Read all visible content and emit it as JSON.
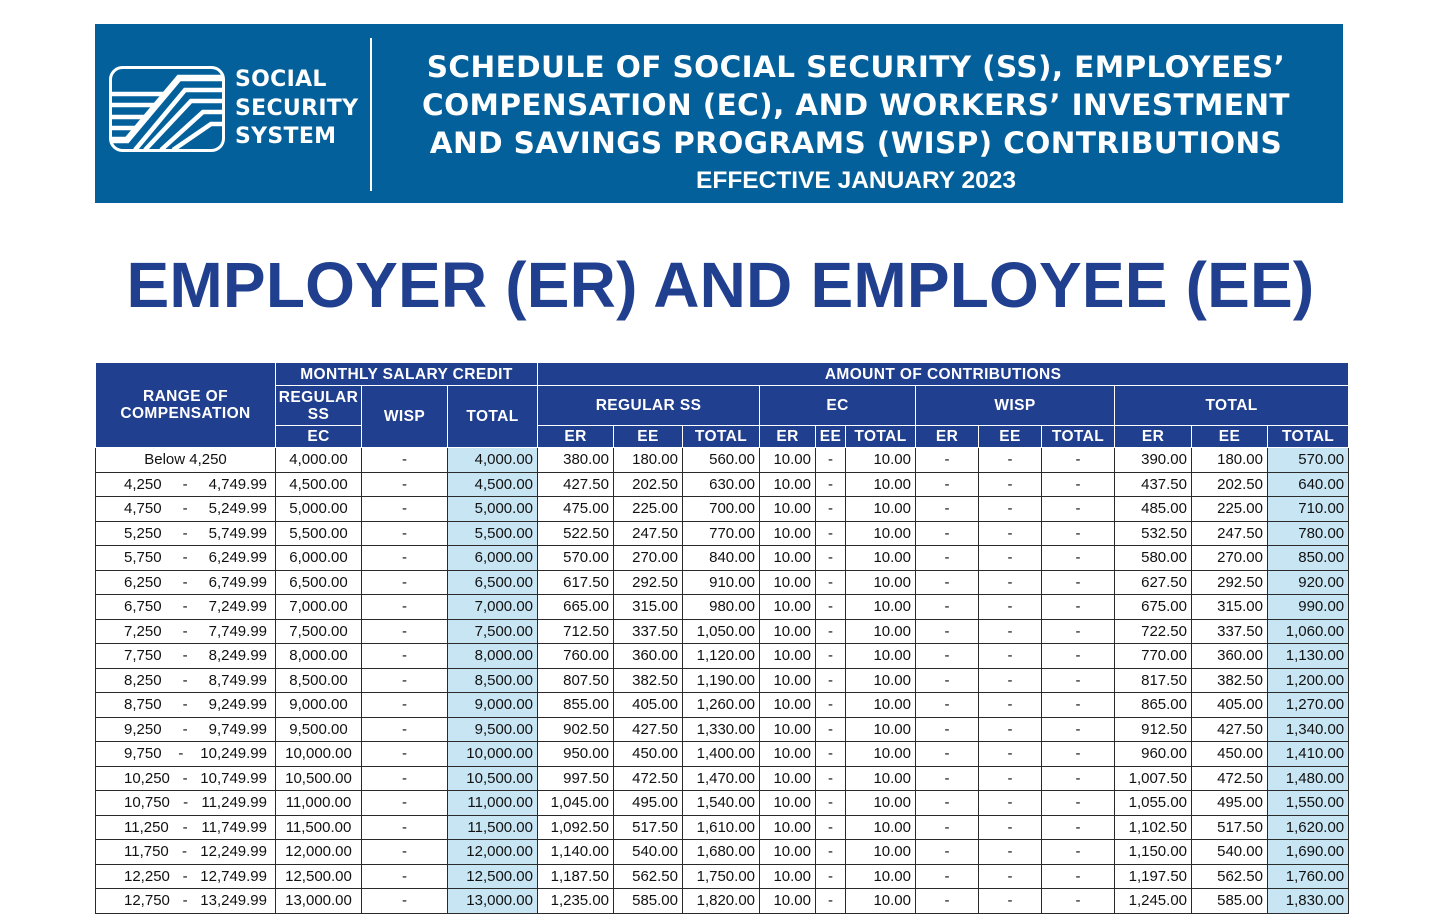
{
  "banner": {
    "logo_lines": [
      "SOCIAL",
      "SECURITY",
      "SYSTEM"
    ],
    "title_lines": [
      "SCHEDULE OF SOCIAL SECURITY (SS), EMPLOYEES’",
      "COMPENSATION (EC), AND WORKERS’ INVESTMENT",
      "AND SAVINGS PROGRAMS (WISP) CONTRIBUTIONS"
    ],
    "effective": "EFFECTIVE JANUARY 2023"
  },
  "main_title": "EMPLOYER (ER) AND EMPLOYEE (EE)",
  "table": {
    "head": {
      "range": "RANGE OF COMPENSATION",
      "msc": "MONTHLY SALARY CREDIT",
      "amount": "AMOUNT OF CONTRIBUTIONS",
      "regular_ss": "REGULAR SS",
      "ec": "EC",
      "wisp": "WISP",
      "total": "TOTAL",
      "contrib_regular_ss": "REGULAR SS",
      "contrib_ec": "EC",
      "contrib_wisp": "WISP",
      "contrib_total": "TOTAL",
      "er": "ER",
      "ee": "EE",
      "sub_total": "TOTAL"
    },
    "rows": [
      {
        "range_from": "Below 4,250",
        "range_sep": "",
        "range_to": "",
        "msc_ss": "4,000.00",
        "msc_wisp": "-",
        "msc_total": "4,000.00",
        "ss_er": "380.00",
        "ss_ee": "180.00",
        "ss_total": "560.00",
        "ec_er": "10.00",
        "ec_ee": "-",
        "ec_total": "10.00",
        "wisp_er": "-",
        "wisp_ee": "-",
        "wisp_total": "-",
        "tot_er": "390.00",
        "tot_ee": "180.00",
        "tot_total": "570.00"
      },
      {
        "range_from": "4,250",
        "range_sep": "-",
        "range_to": "4,749.99",
        "msc_ss": "4,500.00",
        "msc_wisp": "-",
        "msc_total": "4,500.00",
        "ss_er": "427.50",
        "ss_ee": "202.50",
        "ss_total": "630.00",
        "ec_er": "10.00",
        "ec_ee": "-",
        "ec_total": "10.00",
        "wisp_er": "-",
        "wisp_ee": "-",
        "wisp_total": "-",
        "tot_er": "437.50",
        "tot_ee": "202.50",
        "tot_total": "640.00"
      },
      {
        "range_from": "4,750",
        "range_sep": "-",
        "range_to": "5,249.99",
        "msc_ss": "5,000.00",
        "msc_wisp": "-",
        "msc_total": "5,000.00",
        "ss_er": "475.00",
        "ss_ee": "225.00",
        "ss_total": "700.00",
        "ec_er": "10.00",
        "ec_ee": "-",
        "ec_total": "10.00",
        "wisp_er": "-",
        "wisp_ee": "-",
        "wisp_total": "-",
        "tot_er": "485.00",
        "tot_ee": "225.00",
        "tot_total": "710.00"
      },
      {
        "range_from": "5,250",
        "range_sep": "-",
        "range_to": "5,749.99",
        "msc_ss": "5,500.00",
        "msc_wisp": "-",
        "msc_total": "5,500.00",
        "ss_er": "522.50",
        "ss_ee": "247.50",
        "ss_total": "770.00",
        "ec_er": "10.00",
        "ec_ee": "-",
        "ec_total": "10.00",
        "wisp_er": "-",
        "wisp_ee": "-",
        "wisp_total": "-",
        "tot_er": "532.50",
        "tot_ee": "247.50",
        "tot_total": "780.00"
      },
      {
        "range_from": "5,750",
        "range_sep": "-",
        "range_to": "6,249.99",
        "msc_ss": "6,000.00",
        "msc_wisp": "-",
        "msc_total": "6,000.00",
        "ss_er": "570.00",
        "ss_ee": "270.00",
        "ss_total": "840.00",
        "ec_er": "10.00",
        "ec_ee": "-",
        "ec_total": "10.00",
        "wisp_er": "-",
        "wisp_ee": "-",
        "wisp_total": "-",
        "tot_er": "580.00",
        "tot_ee": "270.00",
        "tot_total": "850.00"
      },
      {
        "range_from": "6,250",
        "range_sep": "-",
        "range_to": "6,749.99",
        "msc_ss": "6,500.00",
        "msc_wisp": "-",
        "msc_total": "6,500.00",
        "ss_er": "617.50",
        "ss_ee": "292.50",
        "ss_total": "910.00",
        "ec_er": "10.00",
        "ec_ee": "-",
        "ec_total": "10.00",
        "wisp_er": "-",
        "wisp_ee": "-",
        "wisp_total": "-",
        "tot_er": "627.50",
        "tot_ee": "292.50",
        "tot_total": "920.00"
      },
      {
        "range_from": "6,750",
        "range_sep": "-",
        "range_to": "7,249.99",
        "msc_ss": "7,000.00",
        "msc_wisp": "-",
        "msc_total": "7,000.00",
        "ss_er": "665.00",
        "ss_ee": "315.00",
        "ss_total": "980.00",
        "ec_er": "10.00",
        "ec_ee": "-",
        "ec_total": "10.00",
        "wisp_er": "-",
        "wisp_ee": "-",
        "wisp_total": "-",
        "tot_er": "675.00",
        "tot_ee": "315.00",
        "tot_total": "990.00"
      },
      {
        "range_from": "7,250",
        "range_sep": "-",
        "range_to": "7,749.99",
        "msc_ss": "7,500.00",
        "msc_wisp": "-",
        "msc_total": "7,500.00",
        "ss_er": "712.50",
        "ss_ee": "337.50",
        "ss_total": "1,050.00",
        "ec_er": "10.00",
        "ec_ee": "-",
        "ec_total": "10.00",
        "wisp_er": "-",
        "wisp_ee": "-",
        "wisp_total": "-",
        "tot_er": "722.50",
        "tot_ee": "337.50",
        "tot_total": "1,060.00"
      },
      {
        "range_from": "7,750",
        "range_sep": "-",
        "range_to": "8,249.99",
        "msc_ss": "8,000.00",
        "msc_wisp": "-",
        "msc_total": "8,000.00",
        "ss_er": "760.00",
        "ss_ee": "360.00",
        "ss_total": "1,120.00",
        "ec_er": "10.00",
        "ec_ee": "-",
        "ec_total": "10.00",
        "wisp_er": "-",
        "wisp_ee": "-",
        "wisp_total": "-",
        "tot_er": "770.00",
        "tot_ee": "360.00",
        "tot_total": "1,130.00"
      },
      {
        "range_from": "8,250",
        "range_sep": "-",
        "range_to": "8,749.99",
        "msc_ss": "8,500.00",
        "msc_wisp": "-",
        "msc_total": "8,500.00",
        "ss_er": "807.50",
        "ss_ee": "382.50",
        "ss_total": "1,190.00",
        "ec_er": "10.00",
        "ec_ee": "-",
        "ec_total": "10.00",
        "wisp_er": "-",
        "wisp_ee": "-",
        "wisp_total": "-",
        "tot_er": "817.50",
        "tot_ee": "382.50",
        "tot_total": "1,200.00"
      },
      {
        "range_from": "8,750",
        "range_sep": "-",
        "range_to": "9,249.99",
        "msc_ss": "9,000.00",
        "msc_wisp": "-",
        "msc_total": "9,000.00",
        "ss_er": "855.00",
        "ss_ee": "405.00",
        "ss_total": "1,260.00",
        "ec_er": "10.00",
        "ec_ee": "-",
        "ec_total": "10.00",
        "wisp_er": "-",
        "wisp_ee": "-",
        "wisp_total": "-",
        "tot_er": "865.00",
        "tot_ee": "405.00",
        "tot_total": "1,270.00"
      },
      {
        "range_from": "9,250",
        "range_sep": "-",
        "range_to": "9,749.99",
        "msc_ss": "9,500.00",
        "msc_wisp": "-",
        "msc_total": "9,500.00",
        "ss_er": "902.50",
        "ss_ee": "427.50",
        "ss_total": "1,330.00",
        "ec_er": "10.00",
        "ec_ee": "-",
        "ec_total": "10.00",
        "wisp_er": "-",
        "wisp_ee": "-",
        "wisp_total": "-",
        "tot_er": "912.50",
        "tot_ee": "427.50",
        "tot_total": "1,340.00"
      },
      {
        "range_from": "9,750",
        "range_sep": "-",
        "range_to": "10,249.99",
        "msc_ss": "10,000.00",
        "msc_wisp": "-",
        "msc_total": "10,000.00",
        "ss_er": "950.00",
        "ss_ee": "450.00",
        "ss_total": "1,400.00",
        "ec_er": "10.00",
        "ec_ee": "-",
        "ec_total": "10.00",
        "wisp_er": "-",
        "wisp_ee": "-",
        "wisp_total": "-",
        "tot_er": "960.00",
        "tot_ee": "450.00",
        "tot_total": "1,410.00"
      },
      {
        "range_from": "10,250",
        "range_sep": "-",
        "range_to": "10,749.99",
        "msc_ss": "10,500.00",
        "msc_wisp": "-",
        "msc_total": "10,500.00",
        "ss_er": "997.50",
        "ss_ee": "472.50",
        "ss_total": "1,470.00",
        "ec_er": "10.00",
        "ec_ee": "-",
        "ec_total": "10.00",
        "wisp_er": "-",
        "wisp_ee": "-",
        "wisp_total": "-",
        "tot_er": "1,007.50",
        "tot_ee": "472.50",
        "tot_total": "1,480.00"
      },
      {
        "range_from": "10,750",
        "range_sep": "-",
        "range_to": "11,249.99",
        "msc_ss": "11,000.00",
        "msc_wisp": "-",
        "msc_total": "11,000.00",
        "ss_er": "1,045.00",
        "ss_ee": "495.00",
        "ss_total": "1,540.00",
        "ec_er": "10.00",
        "ec_ee": "-",
        "ec_total": "10.00",
        "wisp_er": "-",
        "wisp_ee": "-",
        "wisp_total": "-",
        "tot_er": "1,055.00",
        "tot_ee": "495.00",
        "tot_total": "1,550.00"
      },
      {
        "range_from": "11,250",
        "range_sep": "-",
        "range_to": "11,749.99",
        "msc_ss": "11,500.00",
        "msc_wisp": "-",
        "msc_total": "11,500.00",
        "ss_er": "1,092.50",
        "ss_ee": "517.50",
        "ss_total": "1,610.00",
        "ec_er": "10.00",
        "ec_ee": "-",
        "ec_total": "10.00",
        "wisp_er": "-",
        "wisp_ee": "-",
        "wisp_total": "-",
        "tot_er": "1,102.50",
        "tot_ee": "517.50",
        "tot_total": "1,620.00"
      },
      {
        "range_from": "11,750",
        "range_sep": "-",
        "range_to": "12,249.99",
        "msc_ss": "12,000.00",
        "msc_wisp": "-",
        "msc_total": "12,000.00",
        "ss_er": "1,140.00",
        "ss_ee": "540.00",
        "ss_total": "1,680.00",
        "ec_er": "10.00",
        "ec_ee": "-",
        "ec_total": "10.00",
        "wisp_er": "-",
        "wisp_ee": "-",
        "wisp_total": "-",
        "tot_er": "1,150.00",
        "tot_ee": "540.00",
        "tot_total": "1,690.00"
      },
      {
        "range_from": "12,250",
        "range_sep": "-",
        "range_to": "12,749.99",
        "msc_ss": "12,500.00",
        "msc_wisp": "-",
        "msc_total": "12,500.00",
        "ss_er": "1,187.50",
        "ss_ee": "562.50",
        "ss_total": "1,750.00",
        "ec_er": "10.00",
        "ec_ee": "-",
        "ec_total": "10.00",
        "wisp_er": "-",
        "wisp_ee": "-",
        "wisp_total": "-",
        "tot_er": "1,197.50",
        "tot_ee": "562.50",
        "tot_total": "1,760.00"
      },
      {
        "range_from": "12,750",
        "range_sep": "-",
        "range_to": "13,249.99",
        "msc_ss": "13,000.00",
        "msc_wisp": "-",
        "msc_total": "13,000.00",
        "ss_er": "1,235.00",
        "ss_ee": "585.00",
        "ss_total": "1,820.00",
        "ec_er": "10.00",
        "ec_ee": "-",
        "ec_total": "10.00",
        "wisp_er": "-",
        "wisp_ee": "-",
        "wisp_total": "-",
        "tot_er": "1,245.00",
        "tot_ee": "585.00",
        "tot_total": "1,830.00"
      }
    ]
  },
  "colors": {
    "banner_bg": "#03609a",
    "header_bg": "#213f8f",
    "title_color": "#213f8f",
    "total_highlight": "#c8e5f4"
  }
}
